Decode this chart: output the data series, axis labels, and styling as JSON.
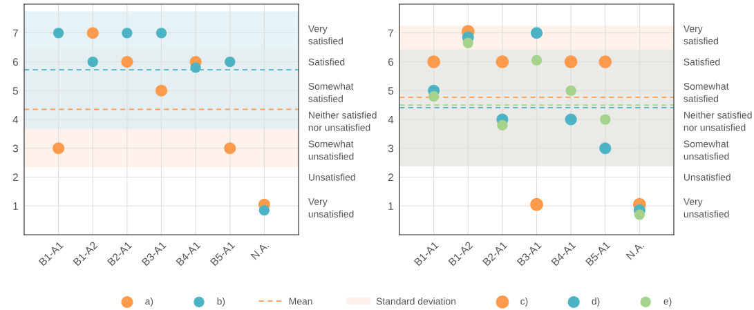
{
  "chart_data": [
    {
      "type": "scatter",
      "categories": [
        "B1-A1",
        "B1-A2",
        "B2-A1",
        "B3-A1",
        "B4-A1",
        "B5-A1",
        "N.A."
      ],
      "series": [
        {
          "name": "a)",
          "color": "#fd9a4c",
          "values": [
            3,
            7,
            6,
            5,
            6,
            3,
            1.05
          ]
        },
        {
          "name": "b)",
          "color": "#4bb3c3",
          "values": [
            7,
            6,
            7,
            7,
            5.8,
            6,
            0.85
          ]
        }
      ],
      "ylim": [
        0,
        8
      ],
      "yticks": [
        1,
        2,
        3,
        4,
        5,
        6,
        7
      ],
      "y2_categories": [
        null,
        "Very\nsatisfied",
        "Satisfied",
        "Somewhat\nsatisfied",
        "Neither satisfied\nnor unsatisfied",
        "Somewhat\nunsatisfied",
        "Unsatisfied",
        "Very\nunsatisfied",
        null
      ],
      "ref_lines": [
        {
          "axis": "y",
          "value": 4.35,
          "label": "Mean",
          "color": "#fd9a4c",
          "line_style": "dashed"
        },
        {
          "axis": "y",
          "value": 5.72,
          "color": "#4bb3c3",
          "line_style": "dashed"
        }
      ],
      "bands": [
        {
          "axis": "y",
          "from": 2.35,
          "to": 6.47,
          "label": "Standard deviation",
          "color": "#fdeee4"
        },
        {
          "axis": "y",
          "from": 3.67,
          "to": 7.75,
          "color": "#dcedf3"
        }
      ],
      "grid": true,
      "legend": "bottom",
      "marker": "circle"
    },
    {
      "type": "scatter",
      "categories": [
        "B1-A1",
        "B1-A2",
        "B2-A1",
        "B3-A1",
        "B4-A1",
        "B5-A1",
        "N.A."
      ],
      "series": [
        {
          "name": "c)",
          "color": "#fd9a4c",
          "values": [
            6,
            7.05,
            6,
            1.05,
            6,
            6,
            1.05
          ]
        },
        {
          "name": "d)",
          "color": "#4bb3c3",
          "values": [
            5,
            6.85,
            4,
            7,
            4,
            3,
            0.85
          ]
        },
        {
          "name": "e)",
          "color": "#a5d38c",
          "values": [
            4.8,
            6.65,
            3.8,
            6.05,
            5,
            4,
            0.7
          ]
        }
      ],
      "ylim": [
        0,
        8
      ],
      "yticks": [
        1,
        2,
        3,
        4,
        5,
        6,
        7
      ],
      "y2_categories": [
        null,
        "Very\nsatisfied",
        "Satisfied",
        "Somewhat\nsatisfied",
        "Neither satisfied\nnor unsatisfied",
        "Somewhat\nunsatisfied",
        "Unsatisfied",
        "Very\nunsatisfied",
        null
      ],
      "ref_lines": [
        {
          "axis": "y",
          "value": 4.77,
          "color": "#fd9a4c",
          "line_style": "dashed"
        },
        {
          "axis": "y",
          "value": 4.5,
          "color": "#a5d38c",
          "line_style": "dashed"
        },
        {
          "axis": "y",
          "value": 4.41,
          "color": "#4bb3c3",
          "line_style": "dashed"
        }
      ],
      "bands": [
        {
          "axis": "y",
          "from": 2.37,
          "to": 7.26,
          "color": "#fdeee4"
        },
        {
          "axis": "y",
          "from": 2.37,
          "to": 6.43,
          "color": "#e3e8e6"
        }
      ],
      "grid": true,
      "legend": "bottom",
      "marker": "circle"
    }
  ]
}
